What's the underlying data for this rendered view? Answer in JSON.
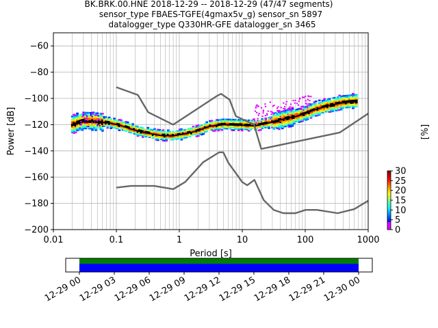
{
  "chart_data": {
    "type": "heatmap",
    "title_lines": [
      "BK.BRK.00.HNE   2018-12-29 -- 2018-12-29  (47/47 segments)",
      "sensor_type FBAES-TGFE(4gmax5v_g) sensor_sn 5897",
      "datalogger_type Q330HR-GFE datalogger_sn 3465"
    ],
    "xlabel": "Period [s]",
    "ylabel": "Power [dB]",
    "xscale": "log",
    "xlim": [
      0.01,
      1000
    ],
    "ylim": [
      -200,
      -50
    ],
    "x_ticks": [
      {
        "v": 0.01,
        "label": "0.01"
      },
      {
        "v": 0.1,
        "label": "0.1"
      },
      {
        "v": 1,
        "label": "1"
      },
      {
        "v": 10,
        "label": "10"
      },
      {
        "v": 100,
        "label": "100"
      },
      {
        "v": 1000,
        "label": "1000"
      }
    ],
    "y_ticks": [
      {
        "v": -60,
        "label": "−60"
      },
      {
        "v": -80,
        "label": "−80"
      },
      {
        "v": -100,
        "label": "−100"
      },
      {
        "v": -120,
        "label": "−120"
      },
      {
        "v": -140,
        "label": "−140"
      },
      {
        "v": -160,
        "label": "−160"
      },
      {
        "v": -180,
        "label": "−180"
      },
      {
        "v": -200,
        "label": "−200"
      }
    ],
    "grid": true,
    "noise_models": {
      "high": [
        [
          0.1,
          -91.5
        ],
        [
          0.22,
          -97.4
        ],
        [
          0.32,
          -110.5
        ],
        [
          0.8,
          -120
        ],
        [
          4,
          -98
        ],
        [
          4.6,
          -96.5
        ],
        [
          6.3,
          -101
        ],
        [
          7.9,
          -113.5
        ],
        [
          15.4,
          -120
        ],
        [
          20,
          -138.5
        ],
        [
          354,
          -126
        ],
        [
          1000,
          -111.5
        ]
      ],
      "low": [
        [
          0.1,
          -168
        ],
        [
          0.17,
          -166.7
        ],
        [
          0.4,
          -166.7
        ],
        [
          0.8,
          -169.2
        ],
        [
          1.24,
          -163.7
        ],
        [
          2.4,
          -148.6
        ],
        [
          4.3,
          -141.1
        ],
        [
          5,
          -141.1
        ],
        [
          6,
          -149
        ],
        [
          10,
          -163.8
        ],
        [
          12,
          -166.2
        ],
        [
          15.6,
          -162.1
        ],
        [
          21.9,
          -177.5
        ],
        [
          31.6,
          -185
        ],
        [
          45,
          -187.5
        ],
        [
          70,
          -187.5
        ],
        [
          101,
          -185
        ],
        [
          154,
          -185
        ],
        [
          328,
          -187.5
        ],
        [
          600,
          -184.4
        ],
        [
          1000,
          -178
        ]
      ]
    },
    "mean_curve": [
      [
        0.02,
        -120
      ],
      [
        0.03,
        -117
      ],
      [
        0.05,
        -117.5
      ],
      [
        0.08,
        -118.5
      ],
      [
        0.12,
        -120.5
      ],
      [
        0.2,
        -124
      ],
      [
        0.3,
        -126
      ],
      [
        0.5,
        -128
      ],
      [
        0.8,
        -128.3
      ],
      [
        1.2,
        -127
      ],
      [
        2,
        -124.5
      ],
      [
        3,
        -121.2
      ],
      [
        5,
        -119.5
      ],
      [
        10,
        -120
      ],
      [
        16,
        -120.5
      ],
      [
        25,
        -118.5
      ],
      [
        40,
        -116.5
      ],
      [
        60,
        -114.5
      ],
      [
        100,
        -111.5
      ],
      [
        150,
        -108
      ],
      [
        250,
        -105
      ],
      [
        400,
        -103
      ],
      [
        650,
        -102
      ]
    ],
    "colorbar": {
      "label": "[%]",
      "range": [
        0,
        30
      ],
      "ticks": [
        0,
        5,
        10,
        15,
        20,
        25,
        30
      ]
    },
    "coverage": {
      "tick_labels": [
        "12-29 00",
        "12-29 03",
        "12-29 06",
        "12-29 09",
        "12-29 12",
        "12-29 15",
        "12-29 18",
        "12-29 21",
        "12-30 00"
      ],
      "data_fraction": [
        0.0,
        1.0
      ],
      "colors": {
        "data": "#0000ff",
        "gaps_ok": "#008000"
      }
    }
  }
}
